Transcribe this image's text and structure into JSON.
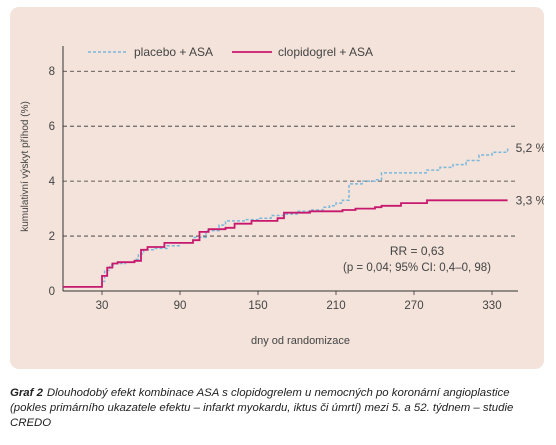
{
  "figure": {
    "label": "Graf 2",
    "caption": "Dlouhodobý efekt kombinace ASA s clopidogrelem u nemocných po koronární angioplastice (pokles primárního ukazatele efektu – infarkt myokardu, iktus či úmrtí) mezi 5. a 52. týdnem – studie CREDO",
    "panel_color": "#f3e3da"
  },
  "chart_data": {
    "type": "line",
    "xlabel": "dny od randomizace",
    "ylabel": "kumulativní výskyt příhod (%)",
    "xlim": [
      0,
      350
    ],
    "ylim": [
      0,
      8.7
    ],
    "x_ticks": [
      30,
      90,
      150,
      210,
      270,
      330
    ],
    "y_ticks": [
      0,
      2,
      4,
      6,
      8
    ],
    "grid": "horizontal dashed at y ticks",
    "legend_position": "top-left",
    "series": [
      {
        "name": "placebo + ASA",
        "color": "#7bb8dd",
        "style": "dashed",
        "end_label": "5,2 %",
        "points": [
          [
            0,
            0.15
          ],
          [
            28,
            0.15
          ],
          [
            30,
            0.35
          ],
          [
            32,
            0.75
          ],
          [
            36,
            0.95
          ],
          [
            40,
            1.0
          ],
          [
            48,
            1.05
          ],
          [
            55,
            1.15
          ],
          [
            58,
            1.35
          ],
          [
            62,
            1.5
          ],
          [
            70,
            1.55
          ],
          [
            80,
            1.65
          ],
          [
            90,
            1.75
          ],
          [
            100,
            1.95
          ],
          [
            110,
            2.2
          ],
          [
            120,
            2.4
          ],
          [
            125,
            2.55
          ],
          [
            135,
            2.55
          ],
          [
            140,
            2.6
          ],
          [
            150,
            2.65
          ],
          [
            160,
            2.75
          ],
          [
            170,
            2.8
          ],
          [
            180,
            2.9
          ],
          [
            190,
            2.95
          ],
          [
            200,
            3.05
          ],
          [
            205,
            3.1
          ],
          [
            210,
            3.2
          ],
          [
            215,
            3.3
          ],
          [
            220,
            3.9
          ],
          [
            230,
            4.0
          ],
          [
            240,
            4.05
          ],
          [
            245,
            4.3
          ],
          [
            270,
            4.3
          ],
          [
            280,
            4.4
          ],
          [
            290,
            4.5
          ],
          [
            300,
            4.6
          ],
          [
            310,
            4.75
          ],
          [
            320,
            4.95
          ],
          [
            330,
            5.05
          ],
          [
            342,
            5.2
          ]
        ]
      },
      {
        "name": "clopidogrel + ASA",
        "color": "#c8186e",
        "style": "solid",
        "end_label": "3,3 %",
        "points": [
          [
            0,
            0.15
          ],
          [
            28,
            0.15
          ],
          [
            30,
            0.55
          ],
          [
            34,
            0.85
          ],
          [
            38,
            1.0
          ],
          [
            42,
            1.05
          ],
          [
            55,
            1.1
          ],
          [
            60,
            1.5
          ],
          [
            65,
            1.6
          ],
          [
            75,
            1.6
          ],
          [
            78,
            1.75
          ],
          [
            100,
            1.85
          ],
          [
            105,
            2.15
          ],
          [
            112,
            2.25
          ],
          [
            125,
            2.3
          ],
          [
            132,
            2.45
          ],
          [
            145,
            2.55
          ],
          [
            165,
            2.65
          ],
          [
            170,
            2.85
          ],
          [
            190,
            2.9
          ],
          [
            200,
            2.9
          ],
          [
            210,
            2.9
          ],
          [
            215,
            2.95
          ],
          [
            225,
            3.0
          ],
          [
            240,
            3.05
          ],
          [
            245,
            3.1
          ],
          [
            255,
            3.1
          ],
          [
            260,
            3.2
          ],
          [
            280,
            3.3
          ],
          [
            342,
            3.3
          ]
        ]
      }
    ],
    "annotations": [
      "RR = 0,63",
      "(p = 0,04; 95% CI: 0,4–0, 98)"
    ]
  }
}
